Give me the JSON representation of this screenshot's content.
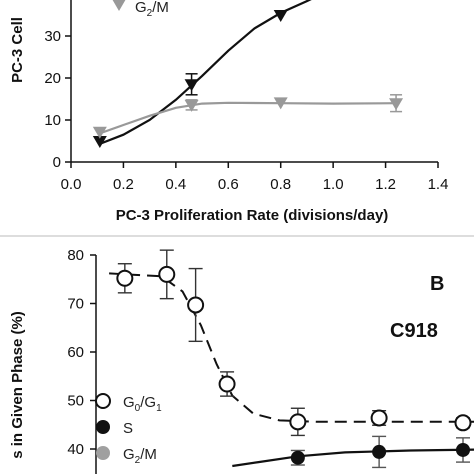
{
  "chart_data": [
    {
      "type": "scatter",
      "panel": "top",
      "xlabel": "PC-3 Proliferation Rate (divisions/day)",
      "ylabel": "PC-3 Cell",
      "xlim": [
        0.0,
        1.4
      ],
      "ylim": [
        0,
        40
      ],
      "xticks": [
        "0.0",
        "0.2",
        "0.4",
        "0.6",
        "0.8",
        "1.0",
        "1.2",
        "1.4"
      ],
      "yticks": [
        "0",
        "10",
        "20",
        "30"
      ],
      "legend": {
        "label_main": "G",
        "label_sub": "2",
        "label_tail": "/M"
      },
      "colors": {
        "s": "#111111",
        "g2m": "#999999"
      },
      "series": [
        {
          "key": "s",
          "marker": "triangle-down",
          "points": [
            {
              "x": 0.11,
              "y": 5.0,
              "err": 0
            },
            {
              "x": 0.46,
              "y": 18.5,
              "err": 2.5
            },
            {
              "x": 0.8,
              "y": 35.0,
              "err": 0
            }
          ]
        },
        {
          "name": "G2/M",
          "key": "g2m",
          "marker": "triangle-down",
          "points": [
            {
              "x": 0.11,
              "y": 7.2,
              "err": 0
            },
            {
              "x": 0.46,
              "y": 13.6,
              "err": 1.2
            },
            {
              "x": 0.8,
              "y": 14.2,
              "err": 0
            },
            {
              "x": 1.24,
              "y": 14.0,
              "err": 2.0
            }
          ]
        }
      ],
      "fits": {
        "s": [
          [
            0.11,
            4.3
          ],
          [
            0.2,
            6.5
          ],
          [
            0.3,
            10.0
          ],
          [
            0.4,
            14.8
          ],
          [
            0.5,
            20.5
          ],
          [
            0.6,
            26.5
          ],
          [
            0.7,
            31.8
          ],
          [
            0.8,
            35.5
          ],
          [
            0.9,
            38.3
          ],
          [
            0.94,
            39.5
          ]
        ],
        "g2m": [
          [
            0.11,
            6.8
          ],
          [
            0.2,
            8.8
          ],
          [
            0.3,
            11.0
          ],
          [
            0.4,
            12.9
          ],
          [
            0.5,
            13.9
          ],
          [
            0.6,
            14.1
          ],
          [
            0.8,
            14.0
          ],
          [
            1.0,
            13.9
          ],
          [
            1.24,
            14.0
          ]
        ]
      }
    },
    {
      "type": "scatter",
      "panel": "bottom",
      "panel_letter": "B",
      "cell_line": "C918",
      "ylabel": "s in Given Phase (%)",
      "ylim": [
        38,
        80
      ],
      "yticks": [
        "40",
        "50",
        "60",
        "70",
        "80"
      ],
      "legend": [
        {
          "key": "g0g1",
          "main": "G",
          "sub1": "0",
          "mid": "/G",
          "sub2": "1"
        },
        {
          "key": "s",
          "main": "S"
        },
        {
          "key": "g2m",
          "main": "G",
          "sub1": "2",
          "mid": "/M"
        }
      ],
      "colors": {
        "g0g1": "#ffffff",
        "s": "#111111",
        "g2m": "#a0a0a0"
      },
      "series": [
        {
          "key": "g0g1",
          "marker": "open-circle",
          "points": [
            {
              "x": 0.11,
              "y": 75.2,
              "err": 3.0
            },
            {
              "x": 0.27,
              "y": 76.0,
              "err": 5.0
            },
            {
              "x": 0.38,
              "y": 69.7,
              "err": 7.5
            },
            {
              "x": 0.5,
              "y": 53.4,
              "err": 2.5
            },
            {
              "x": 0.77,
              "y": 45.6,
              "err": 2.8
            },
            {
              "x": 1.08,
              "y": 46.4,
              "err": 1.5
            },
            {
              "x": 1.4,
              "y": 45.4,
              "err": 1.0
            }
          ]
        },
        {
          "key": "s",
          "marker": "filled-circle",
          "points": [
            {
              "x": 0.77,
              "y": 38.2,
              "err": 1.5
            },
            {
              "x": 1.08,
              "y": 39.4,
              "err": 3.2
            },
            {
              "x": 1.4,
              "y": 39.8,
              "err": 2.5
            }
          ]
        }
      ],
      "fits": {
        "g0g1": [
          [
            0.05,
            76.2
          ],
          [
            0.25,
            75.6
          ],
          [
            0.33,
            72.5
          ],
          [
            0.4,
            65.5
          ],
          [
            0.46,
            57.5
          ],
          [
            0.52,
            51.0
          ],
          [
            0.6,
            47.3
          ],
          [
            0.7,
            45.9
          ],
          [
            0.85,
            45.6
          ],
          [
            1.1,
            45.6
          ],
          [
            1.48,
            45.6
          ]
        ],
        "s": [
          [
            0.52,
            36.5
          ],
          [
            0.62,
            37.3
          ],
          [
            0.77,
            38.5
          ],
          [
            0.95,
            39.3
          ],
          [
            1.2,
            39.7
          ],
          [
            1.48,
            39.9
          ]
        ]
      }
    }
  ]
}
